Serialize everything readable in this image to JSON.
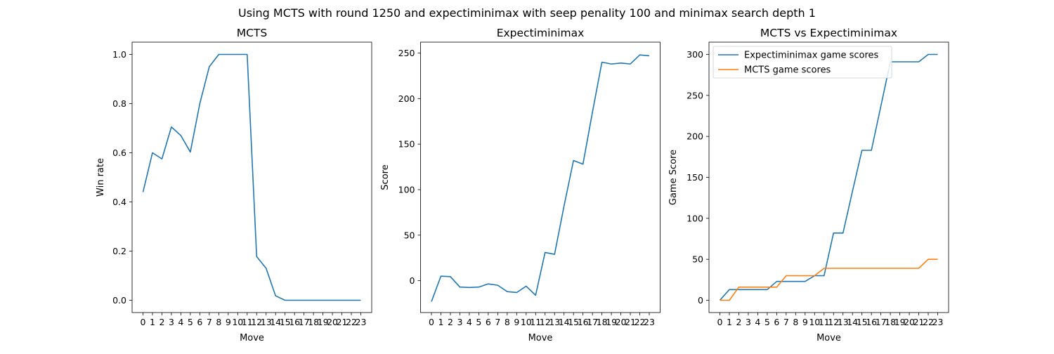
{
  "suptitle": "Using MCTS with round 1250 and expectiminimax with seep penality 100 and minimax search depth 1",
  "colors": {
    "blue": "#1f77b4",
    "orange": "#ff7f0e"
  },
  "chart_data": [
    {
      "type": "line",
      "title": "MCTS",
      "xlabel": "Move",
      "ylabel": "Win rate",
      "x": [
        0,
        1,
        2,
        3,
        4,
        5,
        6,
        7,
        8,
        9,
        10,
        11,
        12,
        13,
        14,
        15,
        16,
        17,
        18,
        19,
        20,
        21,
        22,
        23
      ],
      "xticks": [
        "0",
        "1",
        "2",
        "3",
        "4",
        "5",
        "6",
        "7",
        "8",
        "9",
        "10",
        "11",
        "12",
        "13",
        "14",
        "15",
        "16",
        "17",
        "18",
        "19",
        "20",
        "21",
        "22",
        "23"
      ],
      "ylim": [
        -0.05,
        1.05
      ],
      "yticks": [
        0.0,
        0.2,
        0.4,
        0.6,
        0.8,
        1.0
      ],
      "ytick_labels": [
        "0.0",
        "0.2",
        "0.4",
        "0.6",
        "0.8",
        "1.0"
      ],
      "series": [
        {
          "color": "#1f77b4",
          "values": [
            0.44,
            0.6,
            0.575,
            0.705,
            0.67,
            0.603,
            0.8,
            0.95,
            1.0,
            1.0,
            1.0,
            1.0,
            0.178,
            0.13,
            0.018,
            0.0,
            0.0,
            0.0,
            0.0,
            0.0,
            0.0,
            0.0,
            0.0,
            0.0
          ]
        }
      ]
    },
    {
      "type": "line",
      "title": "Expectiminimax",
      "xlabel": "Move",
      "ylabel": "Score",
      "x": [
        0,
        1,
        2,
        3,
        4,
        5,
        6,
        7,
        8,
        9,
        10,
        11,
        12,
        13,
        14,
        15,
        16,
        17,
        18,
        19,
        20,
        21,
        22,
        23
      ],
      "xticks": [
        "0",
        "1",
        "2",
        "3",
        "4",
        "5",
        "6",
        "7",
        "8",
        "9",
        "10",
        "11",
        "12",
        "13",
        "14",
        "15",
        "16",
        "17",
        "18",
        "19",
        "20",
        "21",
        "22",
        "23"
      ],
      "ylim": [
        -35,
        262
      ],
      "yticks": [
        0,
        50,
        100,
        150,
        200,
        250
      ],
      "ytick_labels": [
        "0",
        "50",
        "100",
        "150",
        "200",
        "250"
      ],
      "series": [
        {
          "color": "#1f77b4",
          "values": [
            -23,
            5,
            4.5,
            -7,
            -7.5,
            -7,
            -3.5,
            -5,
            -12,
            -13,
            -6,
            -16,
            31,
            29,
            82,
            132,
            128,
            185,
            240,
            238,
            239,
            238,
            248,
            247
          ]
        }
      ]
    },
    {
      "type": "line",
      "title": "MCTS vs Expectiminimax",
      "xlabel": "Move",
      "ylabel": "Game Score",
      "legend_position": "upper left",
      "x": [
        0,
        1,
        2,
        3,
        4,
        5,
        6,
        7,
        8,
        9,
        10,
        11,
        12,
        13,
        14,
        15,
        16,
        17,
        18,
        19,
        20,
        21,
        22,
        23
      ],
      "xticks": [
        "0",
        "1",
        "2",
        "3",
        "4",
        "5",
        "6",
        "7",
        "8",
        "9",
        "10",
        "11",
        "12",
        "13",
        "14",
        "15",
        "16",
        "17",
        "18",
        "19",
        "20",
        "21",
        "22",
        "23"
      ],
      "ylim": [
        -15,
        315
      ],
      "yticks": [
        0,
        50,
        100,
        150,
        200,
        250,
        300
      ],
      "ytick_labels": [
        "0",
        "50",
        "100",
        "150",
        "200",
        "250",
        "300"
      ],
      "series": [
        {
          "name": "Expectiminimax game scores",
          "color": "#1f77b4",
          "values": [
            0,
            13,
            13,
            13,
            13,
            13,
            23,
            23,
            23,
            23,
            30,
            30,
            82,
            82,
            133,
            183,
            183,
            237,
            291,
            291,
            291,
            291,
            300,
            300
          ]
        },
        {
          "name": "MCTS game scores",
          "color": "#ff7f0e",
          "values": [
            0,
            0,
            16,
            16,
            16,
            16,
            16,
            30,
            30,
            30,
            30,
            39,
            39,
            39,
            39,
            39,
            39,
            39,
            39,
            39,
            39,
            39,
            50,
            50
          ]
        }
      ]
    }
  ]
}
